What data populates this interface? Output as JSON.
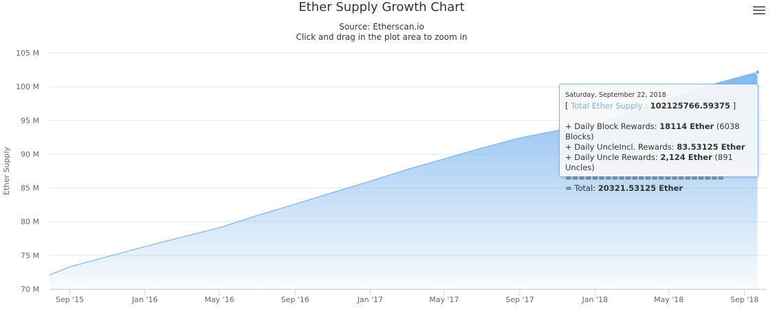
{
  "header": {
    "title": "Ether Supply Growth Chart",
    "source": "Source: Etherscan.io",
    "hint": "Click and drag in the plot area to zoom in"
  },
  "menu": {
    "icon": "hamburger-menu-icon"
  },
  "chart_data": {
    "type": "area",
    "title": "Ether Supply Growth Chart",
    "subtitle": "Source: Etherscan.io",
    "xlabel": "",
    "ylabel": "Ether Supply",
    "ylim": [
      70000000,
      105000000
    ],
    "yticks": [
      70000000,
      75000000,
      80000000,
      85000000,
      90000000,
      95000000,
      100000000,
      105000000
    ],
    "ytick_labels": [
      "70 M",
      "75 M",
      "80 M",
      "85 M",
      "90 M",
      "95 M",
      "100 M",
      "105 M"
    ],
    "xlim": [
      "2015-07-30",
      "2018-10-07"
    ],
    "xticks": [
      "2015-09-01",
      "2016-01-01",
      "2016-05-01",
      "2016-09-01",
      "2017-01-01",
      "2017-05-01",
      "2017-09-01",
      "2018-01-01",
      "2018-05-01",
      "2018-09-01"
    ],
    "xtick_labels": [
      "Sep '15",
      "Jan '16",
      "May '16",
      "Sep '16",
      "Jan '17",
      "May '17",
      "Sep '17",
      "Jan '18",
      "May '18",
      "Sep '18"
    ],
    "grid": true,
    "legend": "none",
    "color": "#7cb5ec",
    "series": [
      {
        "x": [
          "2015-07-30",
          "2015-09-01",
          "2015-11-01",
          "2016-01-01",
          "2016-03-01",
          "2016-05-01",
          "2016-07-01",
          "2016-09-01",
          "2016-11-01",
          "2017-01-01",
          "2017-03-01",
          "2017-05-01",
          "2017-07-01",
          "2017-09-01",
          "2017-11-01",
          "2018-01-01",
          "2018-03-01",
          "2018-05-01",
          "2018-07-01",
          "2018-09-22"
        ],
        "y": [
          72100000,
          73300000,
          74800000,
          76300000,
          77700000,
          79100000,
          80900000,
          82600000,
          84300000,
          86000000,
          87700000,
          89300000,
          90900000,
          92400000,
          93500000,
          94400000,
          96200000,
          98200000,
          100100000,
          102125766.59375
        ]
      }
    ],
    "tooltip": {
      "date": "Saturday, September 22, 2018",
      "supply_label": "Total Ether Supply :",
      "supply_value": "102125766.59375",
      "block_rewards_label": "+ Daily Block Rewards:",
      "block_rewards_value": "18114 Ether",
      "block_rewards_extra": "(6038 Blocks)",
      "uncle_incl_label": "+ Daily UncleIncl. Rewards:",
      "uncle_incl_value": "83.53125 Ether",
      "uncle_rewards_label": "+ Daily Uncle Rewards:",
      "uncle_rewards_value": "2,124 Ether",
      "uncle_rewards_extra": "(891 Uncles)",
      "separator": "========================",
      "total_label": "= Total:",
      "total_value": "20321.53125 Ether"
    }
  }
}
